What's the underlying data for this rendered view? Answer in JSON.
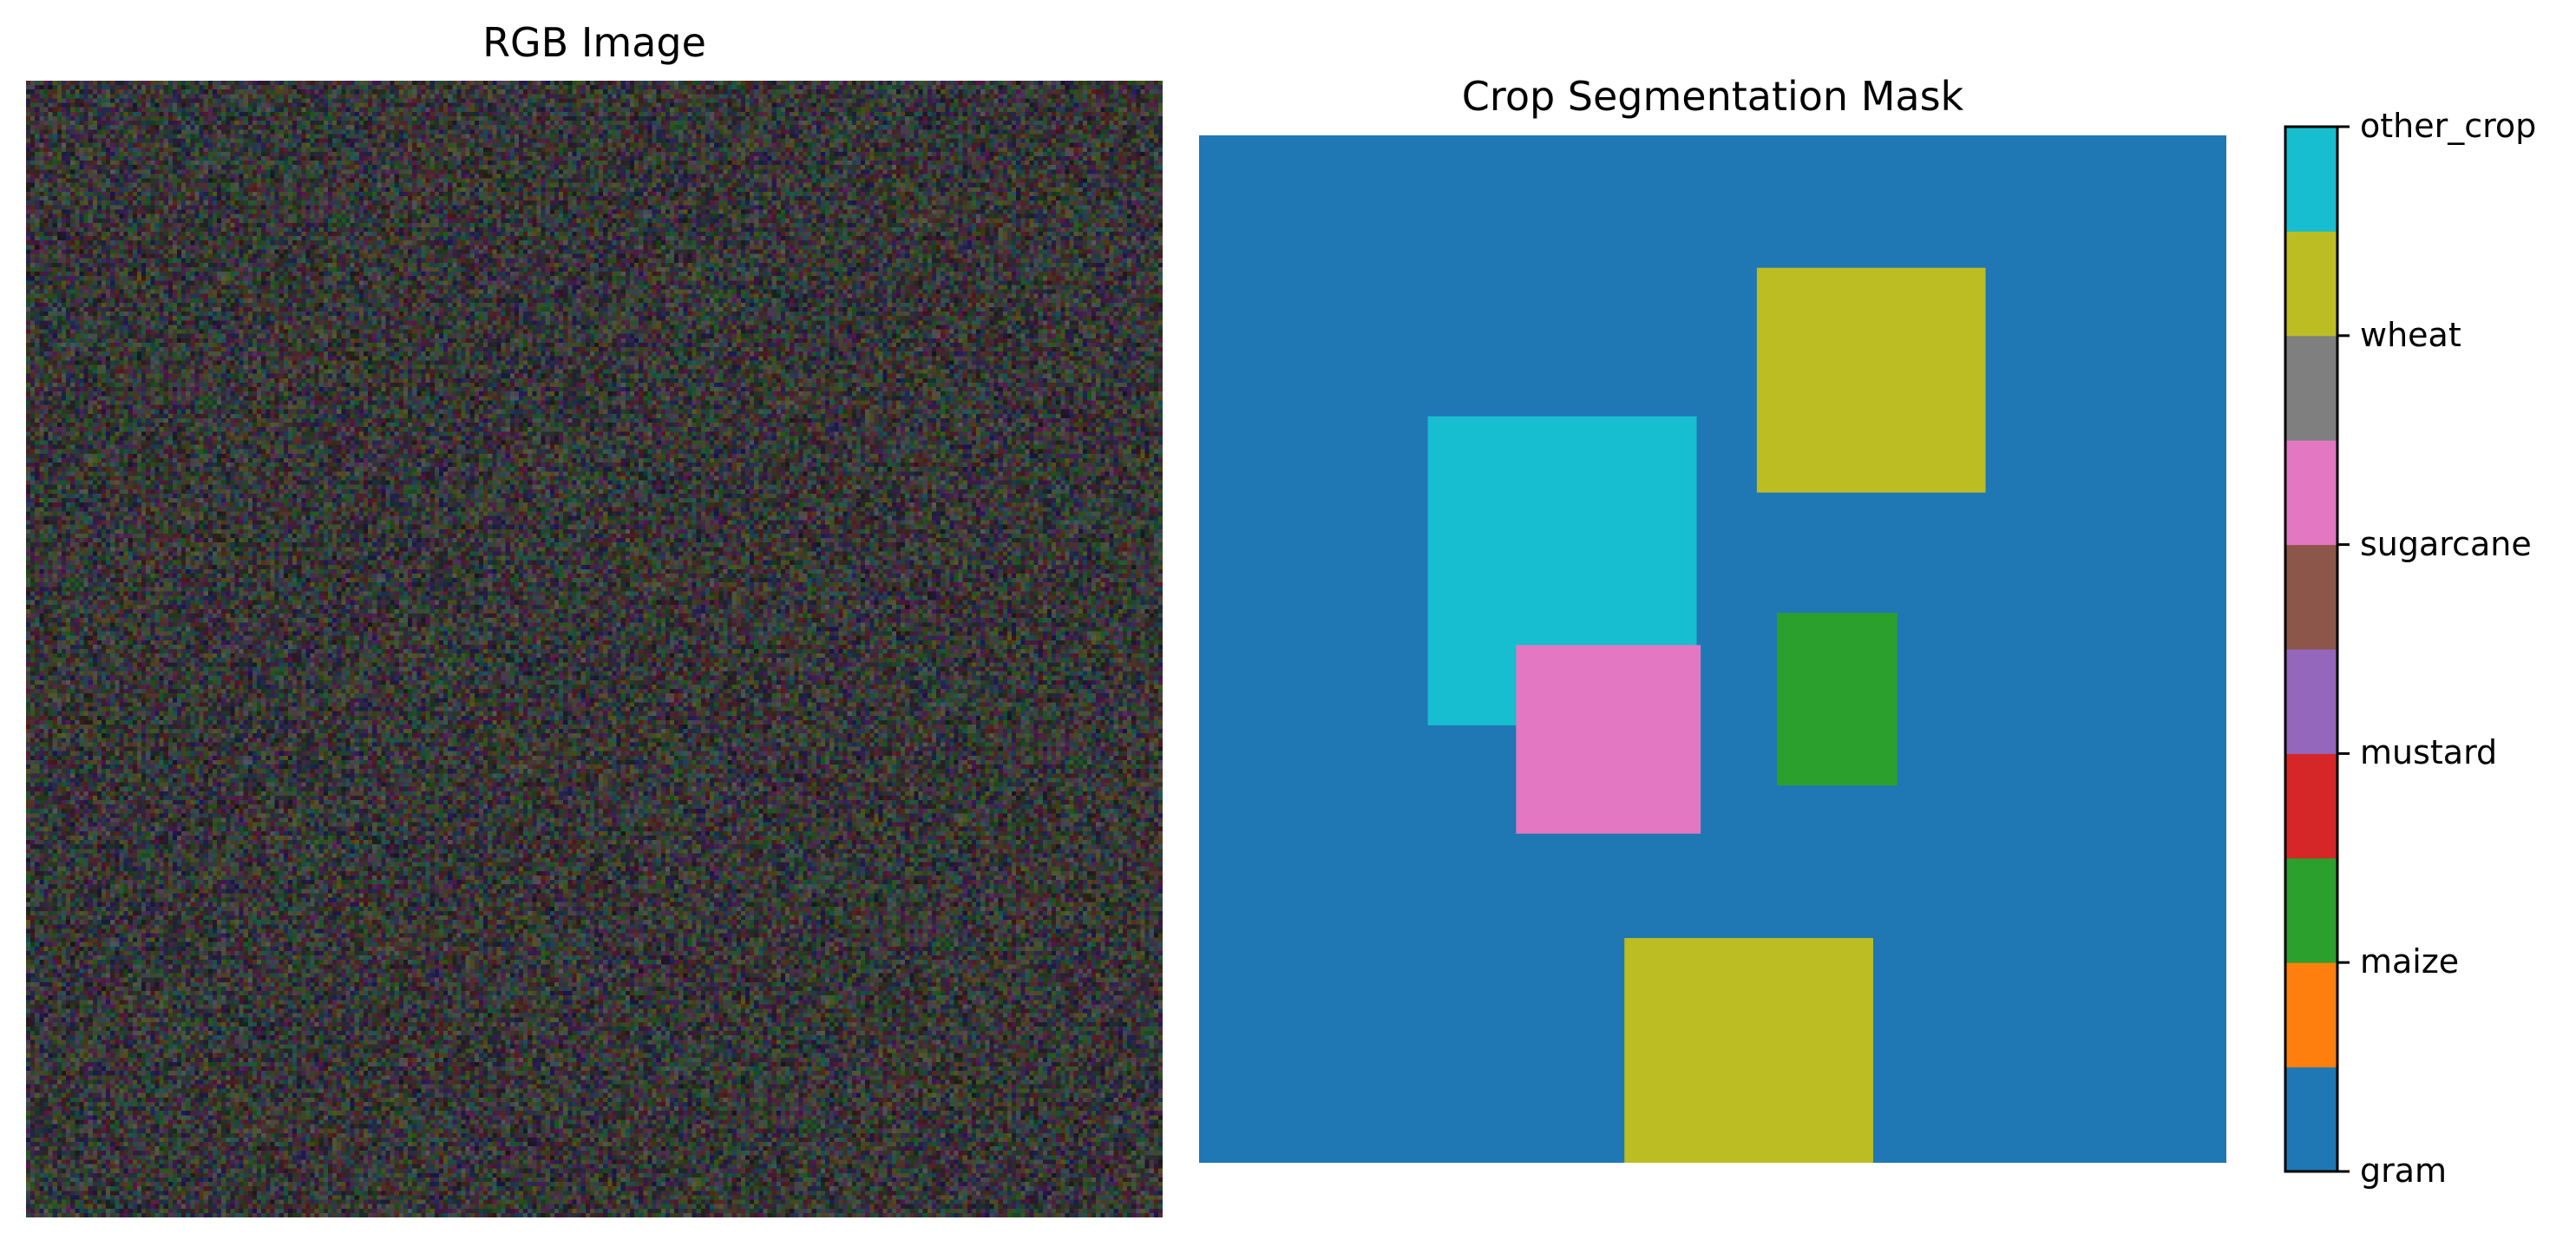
{
  "chart_data": [
    {
      "type": "image",
      "title": "RGB Image",
      "content": "random noise",
      "axes": "off"
    },
    {
      "type": "heatmap",
      "title": "Crop Segmentation Mask",
      "axes": "off",
      "grid_size": 256,
      "background_class": "gram",
      "regions": [
        {
          "class": "wheat",
          "row_range": [
            33,
            89
          ],
          "col_range": [
            139,
            196
          ]
        },
        {
          "class": "other_crop",
          "row_range": [
            70,
            147
          ],
          "col_range": [
            57,
            124
          ]
        },
        {
          "class": "maize",
          "row_range": [
            119,
            162
          ],
          "col_range": [
            144,
            174
          ]
        },
        {
          "class": "sugarcane",
          "row_range": [
            127,
            174
          ],
          "col_range": [
            79,
            125
          ]
        },
        {
          "class": "wheat",
          "row_range": [
            200,
            256
          ],
          "col_range": [
            106,
            168
          ]
        }
      ],
      "colorbar": {
        "classes": [
          "gram",
          "maize",
          "mustard",
          "sugarcane",
          "wheat",
          "other_crop"
        ],
        "tick_labels": [
          "gram",
          "maize",
          "mustard",
          "sugarcane",
          "wheat",
          "other_crop"
        ],
        "range": [
          0,
          5
        ],
        "colors": [
          "#1f77b4",
          "#ff7f0e",
          "#2ca02c",
          "#d62728",
          "#9467bd",
          "#8c564b",
          "#e377c2",
          "#7f7f7f",
          "#bcbd22",
          "#17becf"
        ]
      }
    }
  ]
}
